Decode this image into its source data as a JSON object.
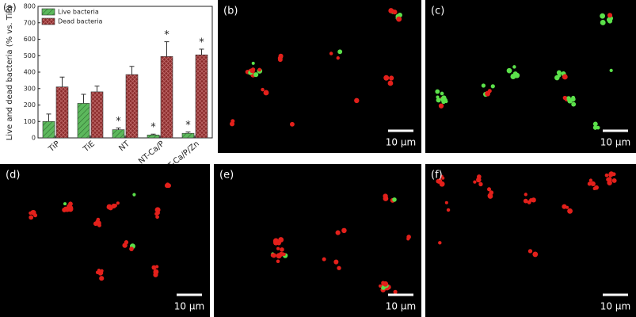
{
  "chart_data": {
    "type": "bar",
    "panel_label": "(a)",
    "ylabel": "Live and dead bacteria (% vs. TiP)",
    "categories": [
      "TiP",
      "TiE",
      "NT",
      "NT-Ca/P",
      "NT-Ca/P/Zn"
    ],
    "series": [
      {
        "name": "Live bacteria",
        "color": "#5cb85c",
        "values": [
          100,
          210,
          50,
          18,
          28
        ],
        "errors": [
          45,
          55,
          10,
          5,
          8
        ]
      },
      {
        "name": "Dead bacteria",
        "color": "#8b2b2b",
        "values": [
          310,
          280,
          385,
          495,
          505
        ],
        "errors": [
          60,
          35,
          50,
          90,
          35
        ]
      }
    ],
    "annotations": [
      {
        "text": "*",
        "series": 0,
        "category": 2
      },
      {
        "text": "*",
        "series": 0,
        "category": 3
      },
      {
        "text": "*",
        "series": 0,
        "category": 4
      },
      {
        "text": "*",
        "series": 1,
        "category": 3
      },
      {
        "text": "*",
        "series": 1,
        "category": 4
      }
    ],
    "ylim": [
      0,
      800
    ],
    "yticks": [
      0,
      100,
      200,
      300,
      400,
      500,
      600,
      700,
      800
    ],
    "legend": "upper left"
  },
  "panels": [
    {
      "label": "(b)",
      "scale_bar": "10 µm"
    },
    {
      "label": "(c)",
      "scale_bar": "10 µm"
    },
    {
      "label": "(d)",
      "scale_bar": "10 µm"
    },
    {
      "label": "(e)",
      "scale_bar": "10 µm"
    },
    {
      "label": "(f)",
      "scale_bar": "10 µm"
    }
  ]
}
